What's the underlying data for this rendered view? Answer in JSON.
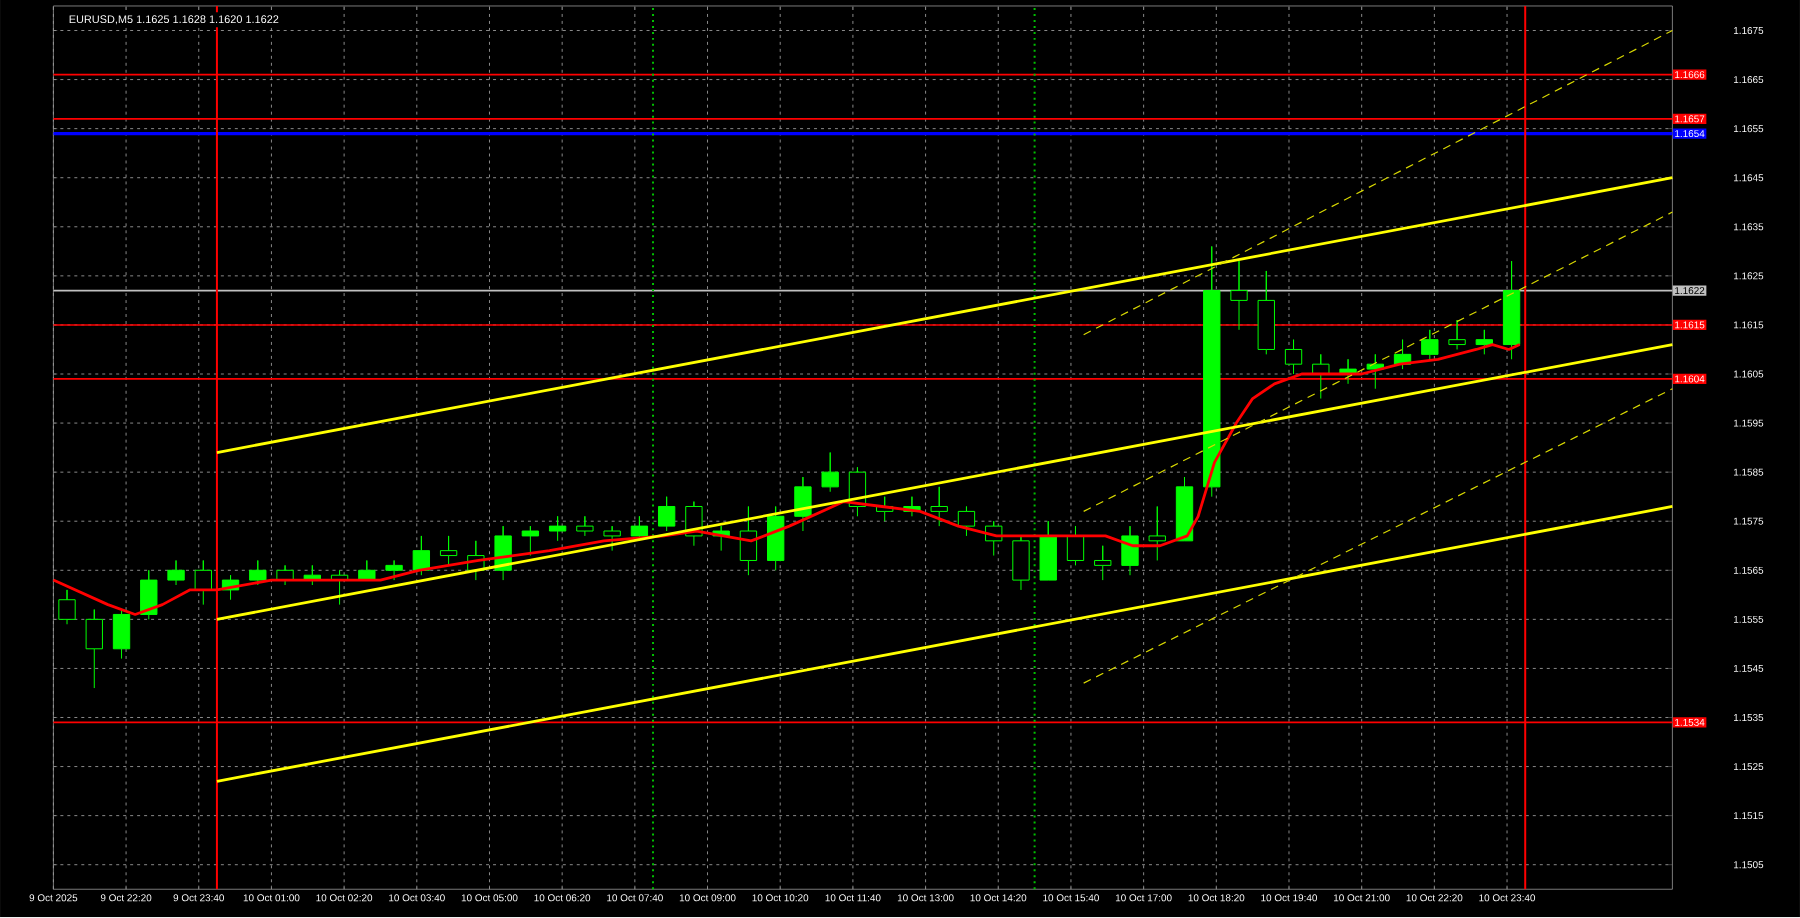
{
  "chart_data": {
    "type": "candlestick",
    "title": "EURUSD,M5  1.1625 1.1628 1.1620 1.1622",
    "color": "#00ff00",
    "x": [
      "2025-10-09T21:15",
      "2025-10-09T21:45",
      "2025-10-09T22:15",
      "2025-10-09T22:45",
      "2025-10-09T23:15",
      "2025-10-09T23:45",
      "2025-10-10T00:15",
      "2025-10-10T00:45",
      "2025-10-10T01:15",
      "2025-10-10T01:45",
      "2025-10-10T02:15",
      "2025-10-10T02:45",
      "2025-10-10T03:15",
      "2025-10-10T03:45",
      "2025-10-10T04:15",
      "2025-10-10T04:45",
      "2025-10-10T05:15",
      "2025-10-10T05:45",
      "2025-10-10T06:15",
      "2025-10-10T06:45",
      "2025-10-10T07:15",
      "2025-10-10T07:45",
      "2025-10-10T08:15",
      "2025-10-10T08:45",
      "2025-10-10T09:15",
      "2025-10-10T09:45",
      "2025-10-10T10:15",
      "2025-10-10T10:45",
      "2025-10-10T11:15",
      "2025-10-10T11:45",
      "2025-10-10T12:15",
      "2025-10-10T12:45",
      "2025-10-10T13:15",
      "2025-10-10T13:45",
      "2025-10-10T14:15",
      "2025-10-10T14:45",
      "2025-10-10T15:15",
      "2025-10-10T15:45",
      "2025-10-10T16:15",
      "2025-10-10T16:45",
      "2025-10-10T17:15",
      "2025-10-10T17:45",
      "2025-10-10T18:15",
      "2025-10-10T18:45",
      "2025-10-10T19:15",
      "2025-10-10T19:45",
      "2025-10-10T20:15",
      "2025-10-10T20:45",
      "2025-10-10T21:15",
      "2025-10-10T21:45",
      "2025-10-10T22:15",
      "2025-10-10T22:45",
      "2025-10-10T23:15",
      "2025-10-10T23:45"
    ],
    "ohlc": [
      [
        1.1559,
        1.1561,
        1.1554,
        1.1555
      ],
      [
        1.1555,
        1.1557,
        1.1541,
        1.1549
      ],
      [
        1.1549,
        1.1557,
        1.1547,
        1.1556
      ],
      [
        1.1556,
        1.1565,
        1.1555,
        1.1563
      ],
      [
        1.1563,
        1.1567,
        1.1562,
        1.1565
      ],
      [
        1.1565,
        1.1567,
        1.1558,
        1.1561
      ],
      [
        1.1561,
        1.1564,
        1.1559,
        1.1563
      ],
      [
        1.1563,
        1.1567,
        1.1562,
        1.1565
      ],
      [
        1.1565,
        1.1566,
        1.1562,
        1.1563
      ],
      [
        1.1563,
        1.1566,
        1.1562,
        1.1564
      ],
      [
        1.1564,
        1.1565,
        1.1558,
        1.1563
      ],
      [
        1.1563,
        1.1567,
        1.1563,
        1.1565
      ],
      [
        1.1565,
        1.1567,
        1.1563,
        1.1566
      ],
      [
        1.1565,
        1.1572,
        1.1564,
        1.1569
      ],
      [
        1.1569,
        1.1572,
        1.1566,
        1.1568
      ],
      [
        1.1568,
        1.1571,
        1.1563,
        1.1565
      ],
      [
        1.1565,
        1.1574,
        1.1563,
        1.1572
      ],
      [
        1.1572,
        1.1574,
        1.1568,
        1.1573
      ],
      [
        1.1573,
        1.1576,
        1.1571,
        1.1574
      ],
      [
        1.1574,
        1.1576,
        1.1572,
        1.1573
      ],
      [
        1.1573,
        1.1574,
        1.1569,
        1.1572
      ],
      [
        1.1572,
        1.1576,
        1.1571,
        1.1574
      ],
      [
        1.1574,
        1.158,
        1.1573,
        1.1578
      ],
      [
        1.1578,
        1.1579,
        1.157,
        1.1572
      ],
      [
        1.1572,
        1.1574,
        1.1569,
        1.1573
      ],
      [
        1.1573,
        1.1578,
        1.1564,
        1.1567
      ],
      [
        1.1567,
        1.1578,
        1.1565,
        1.1576
      ],
      [
        1.1576,
        1.1584,
        1.1573,
        1.1582
      ],
      [
        1.1582,
        1.1589,
        1.1581,
        1.1585
      ],
      [
        1.1585,
        1.1586,
        1.1576,
        1.1578
      ],
      [
        1.1578,
        1.158,
        1.1575,
        1.1577
      ],
      [
        1.1577,
        1.158,
        1.1576,
        1.1578
      ],
      [
        1.1578,
        1.1582,
        1.1574,
        1.1577
      ],
      [
        1.1577,
        1.1578,
        1.1572,
        1.1574
      ],
      [
        1.1574,
        1.1575,
        1.1568,
        1.1571
      ],
      [
        1.1571,
        1.1572,
        1.1561,
        1.1563
      ],
      [
        1.1563,
        1.1575,
        1.1563,
        1.1572
      ],
      [
        1.1572,
        1.1574,
        1.1566,
        1.1567
      ],
      [
        1.1567,
        1.157,
        1.1563,
        1.1566
      ],
      [
        1.1566,
        1.1574,
        1.1564,
        1.1572
      ],
      [
        1.1572,
        1.1578,
        1.1567,
        1.1571
      ],
      [
        1.1571,
        1.1584,
        1.1571,
        1.1582
      ],
      [
        1.1582,
        1.1631,
        1.158,
        1.1622
      ],
      [
        1.1622,
        1.1628,
        1.1614,
        1.162
      ],
      [
        1.162,
        1.1626,
        1.1609,
        1.161
      ],
      [
        1.161,
        1.1612,
        1.1605,
        1.1607
      ],
      [
        1.1607,
        1.1609,
        1.16,
        1.1605
      ],
      [
        1.1605,
        1.1608,
        1.1603,
        1.1606
      ],
      [
        1.1606,
        1.1609,
        1.1602,
        1.1607
      ],
      [
        1.1607,
        1.1612,
        1.1606,
        1.1609
      ],
      [
        1.1609,
        1.1614,
        1.1608,
        1.1612
      ],
      [
        1.1612,
        1.1616,
        1.161,
        1.1611
      ],
      [
        1.1611,
        1.1614,
        1.1609,
        1.1612
      ],
      [
        1.1611,
        1.1628,
        1.1608,
        1.1622
      ]
    ],
    "series": [
      {
        "type": "line",
        "color": "#ff0000",
        "x": [
          "2025-10-09T21:00",
          "2025-10-09T22:00",
          "2025-10-09T22:30",
          "2025-10-09T23:00",
          "2025-10-09T23:30",
          "2025-10-10T00:00",
          "2025-10-10T01:00",
          "2025-10-10T02:00",
          "2025-10-10T03:00",
          "2025-10-10T03:42",
          "2025-10-10T04:48",
          "2025-10-10T06:06",
          "2025-10-10T07:06",
          "2025-10-10T08:12",
          "2025-10-10T08:48",
          "2025-10-10T09:48",
          "2025-10-10T10:30",
          "2025-10-10T11:30",
          "2025-10-10T12:12",
          "2025-10-10T12:54",
          "2025-10-10T13:36",
          "2025-10-10T14:18",
          "2025-10-10T14:54",
          "2025-10-10T15:36",
          "2025-10-10T16:18",
          "2025-10-10T16:48",
          "2025-10-10T17:18",
          "2025-10-10T17:48",
          "2025-10-10T18:00",
          "2025-10-10T18:18",
          "2025-10-10T18:42",
          "2025-10-10T19:00",
          "2025-10-10T19:24",
          "2025-10-10T19:54",
          "2025-10-10T20:24",
          "2025-10-10T21:00",
          "2025-10-10T21:42",
          "2025-10-10T22:24",
          "2025-10-10T23:06",
          "2025-10-10T23:24",
          "2025-10-10T23:42",
          "2025-10-10T23:54"
        ],
        "values": [
          1.1563,
          1.1558,
          1.1556,
          1.1558,
          1.1561,
          1.1561,
          1.1563,
          1.1563,
          1.1563,
          1.1565,
          1.1567,
          1.1569,
          1.1571,
          1.1572,
          1.1573,
          1.1571,
          1.1574,
          1.1579,
          1.1578,
          1.1577,
          1.1574,
          1.1572,
          1.1572,
          1.1572,
          1.1572,
          1.157,
          1.157,
          1.1572,
          1.1576,
          1.1587,
          1.1595,
          1.16,
          1.1603,
          1.1605,
          1.1605,
          1.1605,
          1.1607,
          1.1608,
          1.161,
          1.1611,
          1.161,
          1.1611
        ]
      },
      {
        "type": "line",
        "color": "#ffff00",
        "x": [
          "2025-10-10T00:00",
          "2025-10-11T02:42"
        ],
        "values": [
          1.1589,
          1.1645
        ]
      },
      {
        "type": "line",
        "color": "#ffff00",
        "x": [
          "2025-10-10T00:00",
          "2025-10-11T02:42"
        ],
        "values": [
          1.1555,
          1.1611
        ]
      },
      {
        "type": "line",
        "color": "#ffff00",
        "x": [
          "2025-10-10T00:00",
          "2025-10-11T02:42"
        ],
        "values": [
          1.1522,
          1.1578
        ]
      },
      {
        "type": "line",
        "color": "#d8d800",
        "line_style": "dashed",
        "x": [
          "2025-10-10T15:54",
          "2025-10-11T02:42"
        ],
        "values": [
          1.1613,
          1.1675
        ]
      },
      {
        "type": "line",
        "color": "#d8d800",
        "line_style": "dashed",
        "x": [
          "2025-10-10T15:54",
          "2025-10-11T02:42"
        ],
        "values": [
          1.1577,
          1.1638
        ]
      },
      {
        "type": "line",
        "color": "#d8d800",
        "line_style": "dashed",
        "x": [
          "2025-10-10T15:54",
          "2025-10-11T02:42"
        ],
        "values": [
          1.1542,
          1.1602
        ]
      }
    ],
    "ref_lines": [
      {
        "axis": "y",
        "value": 1.1666,
        "label": "1.1666",
        "color": "#ff0000"
      },
      {
        "axis": "y",
        "value": 1.1657,
        "label": "1.1657",
        "color": "#ff0000"
      },
      {
        "axis": "y",
        "value": 1.1654,
        "label": "1.1654",
        "color": "#0000ff"
      },
      {
        "axis": "y",
        "value": 1.1622,
        "label": "1.1622",
        "color": "#c0c0c0"
      },
      {
        "axis": "y",
        "value": 1.1615,
        "label": "1.1615",
        "color": "#ff0000"
      },
      {
        "axis": "y",
        "value": 1.1604,
        "label": "1.1604",
        "color": "#ff0000"
      },
      {
        "axis": "y",
        "value": 1.1534,
        "label": "1.1534",
        "color": "#ff0000"
      },
      {
        "axis": "x",
        "value": "2025-10-10T00:00",
        "color": "#ff0000"
      },
      {
        "axis": "x",
        "value": "2025-10-11T00:00",
        "color": "#ff0000"
      },
      {
        "axis": "x",
        "value": "2025-10-10T08:00",
        "color": "#00c000",
        "line_style": "dotted"
      },
      {
        "axis": "x",
        "value": "2025-10-10T15:00",
        "color": "#00c000",
        "line_style": "dotted"
      }
    ],
    "xlim": [
      "2025-10-09T21:00",
      "2025-10-11T02:42"
    ],
    "ylim": [
      1.15,
      1.168
    ],
    "xticks": [
      {
        "value": "2025-10-09T21:00",
        "label": "9 Oct 2025"
      },
      {
        "value": "2025-10-09T22:20",
        "label": "9 Oct 22:20"
      },
      {
        "value": "2025-10-09T23:40",
        "label": "9 Oct 23:40"
      },
      {
        "value": "2025-10-10T01:00",
        "label": "10 Oct 01:00"
      },
      {
        "value": "2025-10-10T02:20",
        "label": "10 Oct 02:20"
      },
      {
        "value": "2025-10-10T03:40",
        "label": "10 Oct 03:40"
      },
      {
        "value": "2025-10-10T05:00",
        "label": "10 Oct 05:00"
      },
      {
        "value": "2025-10-10T06:20",
        "label": "10 Oct 06:20"
      },
      {
        "value": "2025-10-10T07:40",
        "label": "10 Oct 07:40"
      },
      {
        "value": "2025-10-10T09:00",
        "label": "10 Oct 09:00"
      },
      {
        "value": "2025-10-10T10:20",
        "label": "10 Oct 10:20"
      },
      {
        "value": "2025-10-10T11:40",
        "label": "10 Oct 11:40"
      },
      {
        "value": "2025-10-10T13:00",
        "label": "10 Oct 13:00"
      },
      {
        "value": "2025-10-10T14:20",
        "label": "10 Oct 14:20"
      },
      {
        "value": "2025-10-10T15:40",
        "label": "10 Oct 15:40"
      },
      {
        "value": "2025-10-10T17:00",
        "label": "10 Oct 17:00"
      },
      {
        "value": "2025-10-10T18:20",
        "label": "10 Oct 18:20"
      },
      {
        "value": "2025-10-10T19:40",
        "label": "10 Oct 19:40"
      },
      {
        "value": "2025-10-10T21:00",
        "label": "10 Oct 21:00"
      },
      {
        "value": "2025-10-10T22:20",
        "label": "10 Oct 22:20"
      },
      {
        "value": "2025-10-10T23:40",
        "label": "10 Oct 23:40"
      }
    ],
    "yticks": [
      1.1505,
      1.1515,
      1.1525,
      1.1535,
      1.1545,
      1.1555,
      1.1565,
      1.1575,
      1.1585,
      1.1595,
      1.1605,
      1.1615,
      1.1625,
      1.1635,
      1.1645,
      1.1655,
      1.1665,
      1.1675
    ],
    "grid": true
  }
}
